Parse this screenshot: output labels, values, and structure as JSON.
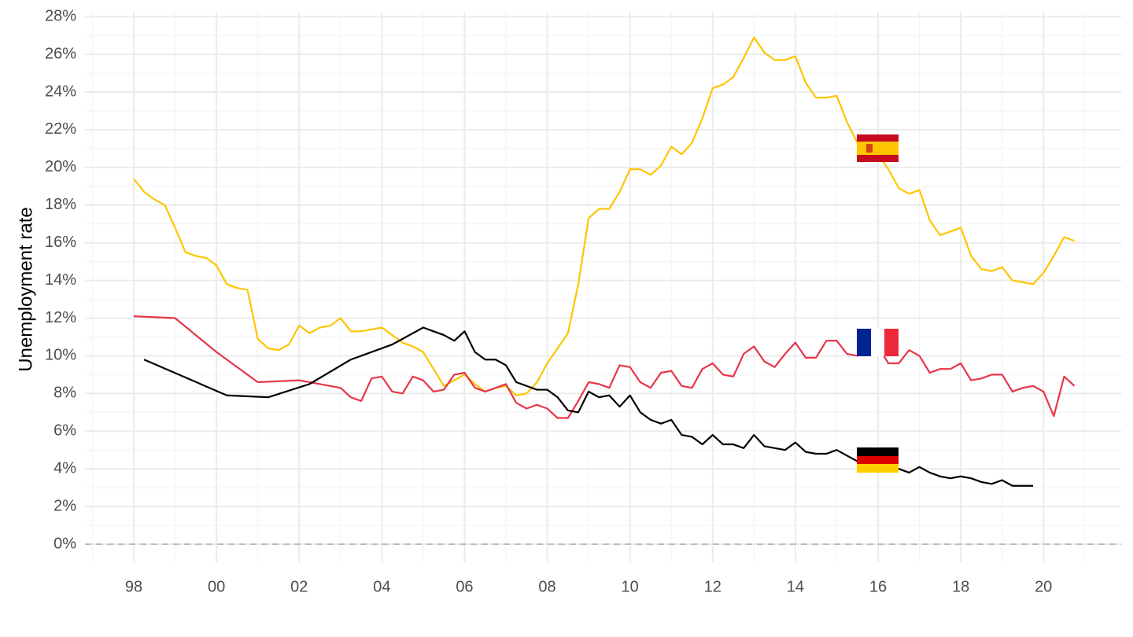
{
  "chart_data": {
    "type": "line",
    "y_label": "Unemployment rate",
    "xlim": [
      1996.82,
      2021.88
    ],
    "ylim": [
      -0.96,
      28.26
    ],
    "xticks": [
      {
        "value": 1998,
        "label": "98"
      },
      {
        "value": 2000,
        "label": "00"
      },
      {
        "value": 2002,
        "label": "02"
      },
      {
        "value": 2004,
        "label": "04"
      },
      {
        "value": 2006,
        "label": "06"
      },
      {
        "value": 2008,
        "label": "08"
      },
      {
        "value": 2010,
        "label": "10"
      },
      {
        "value": 2012,
        "label": "12"
      },
      {
        "value": 2014,
        "label": "14"
      },
      {
        "value": 2016,
        "label": "16"
      },
      {
        "value": 2018,
        "label": "18"
      },
      {
        "value": 2020,
        "label": "20"
      }
    ],
    "yticks": [
      {
        "value": 0,
        "label": "0%"
      },
      {
        "value": 2,
        "label": "2%"
      },
      {
        "value": 4,
        "label": "4%"
      },
      {
        "value": 6,
        "label": "6%"
      },
      {
        "value": 8,
        "label": "8%"
      },
      {
        "value": 10,
        "label": "10%"
      },
      {
        "value": 12,
        "label": "12%"
      },
      {
        "value": 14,
        "label": "14%"
      },
      {
        "value": 16,
        "label": "16%"
      },
      {
        "value": 18,
        "label": "18%"
      },
      {
        "value": 20,
        "label": "20%"
      },
      {
        "value": 22,
        "label": "22%"
      },
      {
        "value": 24,
        "label": "24%"
      },
      {
        "value": 26,
        "label": "26%"
      },
      {
        "value": 28,
        "label": "28%"
      }
    ],
    "xminor": [
      1997,
      1999,
      2001,
      2003,
      2005,
      2007,
      2009,
      2011,
      2013,
      2015,
      2017,
      2019,
      2021
    ],
    "yminor": [
      1,
      3,
      5,
      7,
      9,
      11,
      13,
      15,
      17,
      19,
      21,
      23,
      25,
      27
    ],
    "grid": true,
    "zero_line": true,
    "series": [
      {
        "color": "#FFC400",
        "x": [
          1998,
          1998.25,
          1998.5,
          1998.75,
          1999,
          1999.25,
          1999.5,
          1999.75,
          2000,
          2000.25,
          2000.5,
          2000.75,
          2001,
          2001.25,
          2001.5,
          2001.75,
          2002,
          2002.25,
          2002.5,
          2002.75,
          2003,
          2003.25,
          2003.5,
          2003.75,
          2004,
          2004.25,
          2004.5,
          2004.75,
          2005,
          2005.25,
          2005.5,
          2005.75,
          2006,
          2006.25,
          2006.5,
          2006.75,
          2007,
          2007.25,
          2007.5,
          2007.75,
          2008,
          2008.25,
          2008.5,
          2008.75,
          2009,
          2009.25,
          2009.5,
          2009.75,
          2010,
          2010.25,
          2010.5,
          2010.75,
          2011,
          2011.25,
          2011.5,
          2011.75,
          2012,
          2012.25,
          2012.5,
          2012.75,
          2013,
          2013.25,
          2013.5,
          2013.75,
          2014,
          2014.25,
          2014.5,
          2014.75,
          2015,
          2015.25,
          2015.5,
          2015.75,
          2016,
          2016.25,
          2016.5,
          2016.75,
          2017,
          2017.25,
          2017.5,
          2017.75,
          2018,
          2018.25,
          2018.5,
          2018.75,
          2019,
          2019.25,
          2019.5,
          2019.75,
          2020,
          2020.25,
          2020.5,
          2020.75
        ],
        "values": [
          19.4,
          18.7,
          18.3,
          18.0,
          16.8,
          15.5,
          15.3,
          15.2,
          14.8,
          13.8,
          13.6,
          13.5,
          10.9,
          10.4,
          10.3,
          10.6,
          11.6,
          11.2,
          11.5,
          11.6,
          12.0,
          11.3,
          11.3,
          11.4,
          11.5,
          11.1,
          10.7,
          10.5,
          10.2,
          9.3,
          8.4,
          8.7,
          9.0,
          8.5,
          8.1,
          8.3,
          8.4,
          7.9,
          8.0,
          8.6,
          9.6,
          10.4,
          11.2,
          13.8,
          17.3,
          17.8,
          17.8,
          18.7,
          19.9,
          19.9,
          19.6,
          20.1,
          21.1,
          20.7,
          21.3,
          22.6,
          24.2,
          24.4,
          24.8,
          25.8,
          26.9,
          26.1,
          25.7,
          25.7,
          25.9,
          24.5,
          23.7,
          23.7,
          23.8,
          22.4,
          21.3,
          21.0,
          20.7,
          19.9,
          18.9,
          18.6,
          18.8,
          17.2,
          16.4,
          16.6,
          16.8,
          15.3,
          14.6,
          14.5,
          14.7,
          14.0,
          13.9,
          13.8,
          14.4,
          15.3,
          16.3,
          16.1
        ]
      },
      {
        "color": "#E8344A",
        "x": [
          1998,
          1999,
          2000,
          2001,
          2002,
          2003,
          2003.25,
          2003.5,
          2003.75,
          2004,
          2004.25,
          2004.5,
          2004.75,
          2005,
          2005.25,
          2005.5,
          2005.75,
          2006,
          2006.25,
          2006.5,
          2006.75,
          2007,
          2007.25,
          2007.5,
          2007.75,
          2008,
          2008.25,
          2008.5,
          2008.75,
          2009,
          2009.25,
          2009.5,
          2009.75,
          2010,
          2010.25,
          2010.5,
          2010.75,
          2011,
          2011.25,
          2011.5,
          2011.75,
          2012,
          2012.25,
          2012.5,
          2012.75,
          2013,
          2013.25,
          2013.5,
          2013.75,
          2014,
          2014.25,
          2014.5,
          2014.75,
          2015,
          2015.25,
          2015.5,
          2015.75,
          2016,
          2016.25,
          2016.5,
          2016.75,
          2017,
          2017.25,
          2017.5,
          2017.75,
          2018,
          2018.25,
          2018.5,
          2018.75,
          2019,
          2019.25,
          2019.5,
          2019.75,
          2020,
          2020.25,
          2020.5,
          2020.75
        ],
        "values": [
          12.1,
          12.0,
          10.2,
          8.6,
          8.7,
          8.3,
          7.8,
          7.6,
          8.8,
          8.9,
          8.1,
          8.0,
          8.9,
          8.7,
          8.1,
          8.2,
          9.0,
          9.1,
          8.3,
          8.1,
          8.3,
          8.5,
          7.5,
          7.2,
          7.4,
          7.2,
          6.7,
          6.7,
          7.6,
          8.6,
          8.5,
          8.3,
          9.5,
          9.4,
          8.6,
          8.3,
          9.1,
          9.2,
          8.4,
          8.3,
          9.3,
          9.6,
          9.0,
          8.9,
          10.1,
          10.5,
          9.7,
          9.4,
          10.1,
          10.7,
          9.9,
          9.9,
          10.8,
          10.8,
          10.1,
          10.0,
          10.5,
          10.5,
          9.6,
          9.6,
          10.3,
          10.0,
          9.1,
          9.3,
          9.3,
          9.6,
          8.7,
          8.8,
          9.0,
          9.0,
          8.1,
          8.3,
          8.4,
          8.1,
          6.8,
          8.9,
          8.4
        ]
      },
      {
        "color": "#000000",
        "x": [
          1998.25,
          2000.25,
          2001.25,
          2002.25,
          2003.25,
          2004.25,
          2005,
          2005.25,
          2005.5,
          2005.75,
          2006,
          2006.25,
          2006.5,
          2006.75,
          2007,
          2007.25,
          2007.5,
          2007.75,
          2008,
          2008.25,
          2008.5,
          2008.75,
          2009,
          2009.25,
          2009.5,
          2009.75,
          2010,
          2010.25,
          2010.5,
          2010.75,
          2011,
          2011.25,
          2011.5,
          2011.75,
          2012,
          2012.25,
          2012.5,
          2012.75,
          2013,
          2013.25,
          2013.5,
          2013.75,
          2014,
          2014.25,
          2014.5,
          2014.75,
          2015,
          2015.25,
          2015.5,
          2015.75,
          2016,
          2016.25,
          2016.5,
          2016.75,
          2017,
          2017.25,
          2017.5,
          2017.75,
          2018,
          2018.25,
          2018.5,
          2018.75,
          2019,
          2019.25,
          2019.5,
          2019.75
        ],
        "values": [
          9.8,
          7.9,
          7.8,
          8.5,
          9.8,
          10.6,
          11.5,
          11.3,
          11.1,
          10.8,
          11.3,
          10.2,
          9.8,
          9.8,
          9.5,
          8.6,
          8.4,
          8.2,
          8.2,
          7.8,
          7.1,
          7.0,
          8.1,
          7.8,
          7.9,
          7.3,
          7.9,
          7.0,
          6.6,
          6.4,
          6.6,
          5.8,
          5.7,
          5.3,
          5.8,
          5.3,
          5.3,
          5.1,
          5.8,
          5.2,
          5.1,
          5.0,
          5.4,
          4.9,
          4.8,
          4.8,
          5.0,
          4.7,
          4.4,
          4.3,
          4.2,
          4.1,
          4.0,
          3.8,
          4.1,
          3.8,
          3.6,
          3.5,
          3.6,
          3.5,
          3.3,
          3.2,
          3.4,
          3.1,
          3.1,
          3.1
        ]
      }
    ]
  }
}
